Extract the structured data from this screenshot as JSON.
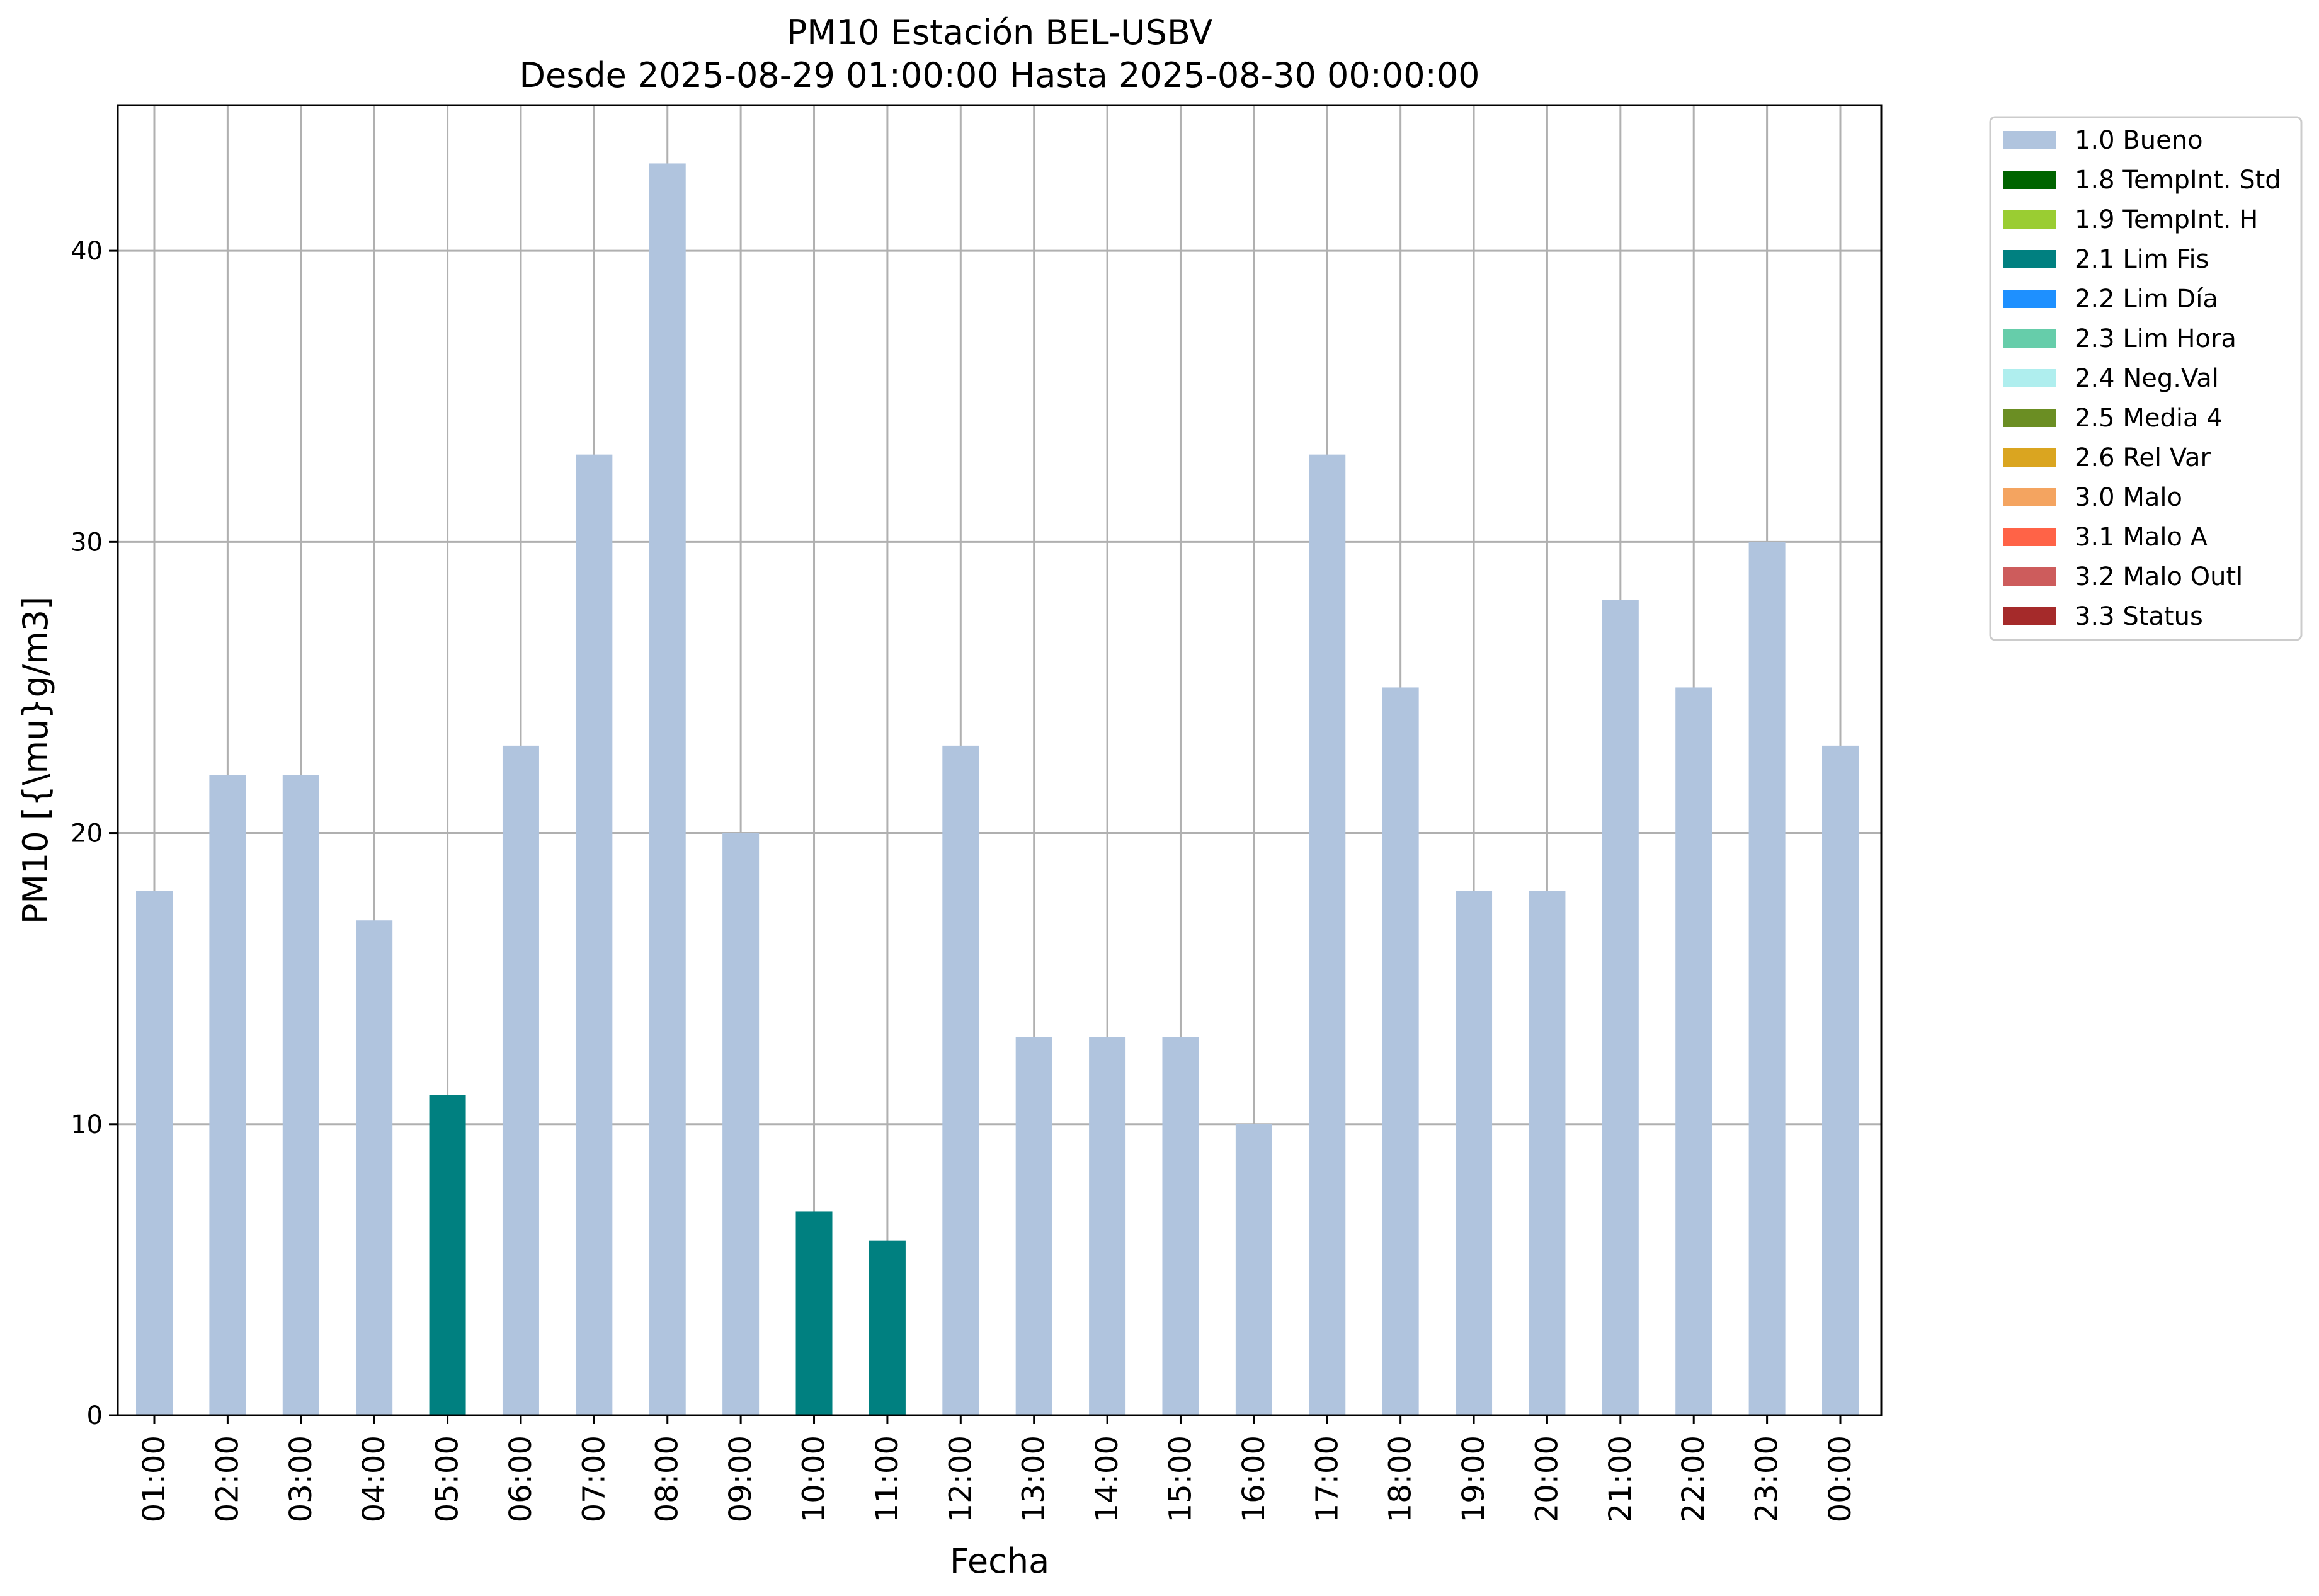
{
  "chart_data": {
    "type": "bar",
    "title": "PM10 Estación BEL-USBV",
    "subtitle": "Desde 2025-08-29 01:00:00 Hasta 2025-08-30 00:00:00",
    "xlabel": "Fecha",
    "ylabel": "PM10 [{\\mu}g/m3]",
    "ylim": [
      0,
      45
    ],
    "yticks": [
      0,
      10,
      20,
      30,
      40
    ],
    "grid": true,
    "legend_placement": "outside-top-right",
    "categories": [
      "01:00",
      "02:00",
      "03:00",
      "04:00",
      "05:00",
      "06:00",
      "07:00",
      "08:00",
      "09:00",
      "10:00",
      "11:00",
      "12:00",
      "13:00",
      "14:00",
      "15:00",
      "16:00",
      "17:00",
      "18:00",
      "19:00",
      "20:00",
      "21:00",
      "22:00",
      "23:00",
      "00:00"
    ],
    "values": [
      18,
      22,
      22,
      17,
      11,
      23,
      33,
      43,
      20,
      7,
      6,
      23,
      13,
      13,
      13,
      10,
      33,
      25,
      18,
      18,
      28,
      25,
      30,
      23
    ],
    "flags": [
      "1.0 Bueno",
      "1.0 Bueno",
      "1.0 Bueno",
      "1.0 Bueno",
      "2.1 Lim Fis",
      "1.0 Bueno",
      "1.0 Bueno",
      "1.0 Bueno",
      "1.0 Bueno",
      "2.1 Lim Fis",
      "2.1 Lim Fis",
      "1.0 Bueno",
      "1.0 Bueno",
      "1.0 Bueno",
      "1.0 Bueno",
      "1.0 Bueno",
      "1.0 Bueno",
      "1.0 Bueno",
      "1.0 Bueno",
      "1.0 Bueno",
      "1.0 Bueno",
      "1.0 Bueno",
      "1.0 Bueno",
      "1.0 Bueno"
    ],
    "legend": [
      {
        "name": "1.0 Bueno",
        "color": "#b0c4de"
      },
      {
        "name": "1.8 TempInt. Std",
        "color": "#006400"
      },
      {
        "name": "1.9 TempInt. H",
        "color": "#9acd32"
      },
      {
        "name": "2.1 Lim Fis",
        "color": "#008080"
      },
      {
        "name": "2.2 Lim Día",
        "color": "#1e90ff"
      },
      {
        "name": "2.3 Lim Hora",
        "color": "#66cdaa"
      },
      {
        "name": "2.4 Neg.Val",
        "color": "#afeeee"
      },
      {
        "name": "2.5 Media 4",
        "color": "#6b8e23"
      },
      {
        "name": "2.6 Rel Var",
        "color": "#daa520"
      },
      {
        "name": "3.0 Malo",
        "color": "#f4a460"
      },
      {
        "name": "3.1 Malo A",
        "color": "#ff6347"
      },
      {
        "name": "3.2 Malo Outl",
        "color": "#cd5c5c"
      },
      {
        "name": "3.3 Status",
        "color": "#a52a2a"
      }
    ]
  }
}
